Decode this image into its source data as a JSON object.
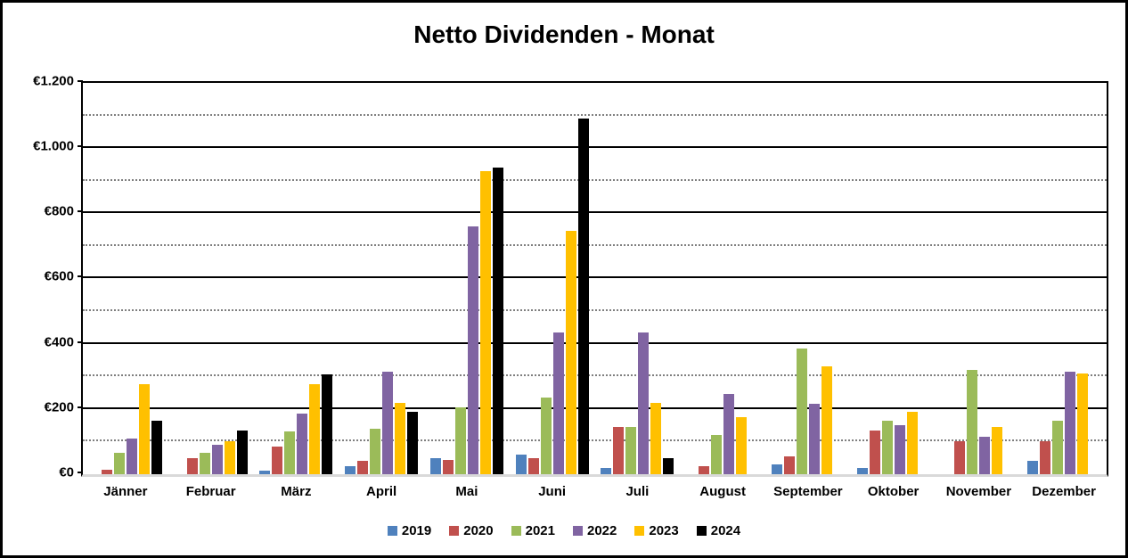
{
  "chart_data": {
    "type": "bar",
    "title": "Netto Dividenden - Monat",
    "categories": [
      "Jänner",
      "Februar",
      "März",
      "April",
      "Mai",
      "Juni",
      "Juli",
      "August",
      "September",
      "Oktober",
      "November",
      "Dezember"
    ],
    "series": [
      {
        "name": "2019",
        "color": "#4F81BD",
        "values": [
          0,
          0,
          10,
          25,
          50,
          60,
          20,
          0,
          30,
          20,
          0,
          40
        ]
      },
      {
        "name": "2020",
        "color": "#C0504D",
        "values": [
          15,
          50,
          85,
          40,
          45,
          50,
          145,
          25,
          55,
          135,
          100,
          100
        ]
      },
      {
        "name": "2021",
        "color": "#9BBB59",
        "values": [
          65,
          65,
          130,
          140,
          205,
          235,
          145,
          120,
          385,
          165,
          320,
          165
        ]
      },
      {
        "name": "2022",
        "color": "#8064A2",
        "values": [
          110,
          90,
          185,
          315,
          760,
          435,
          435,
          245,
          215,
          150,
          115,
          315
        ]
      },
      {
        "name": "2023",
        "color": "#FFC000",
        "values": [
          275,
          100,
          275,
          220,
          930,
          745,
          220,
          175,
          330,
          190,
          145,
          310
        ]
      },
      {
        "name": "2024",
        "color": "#000000",
        "values": [
          165,
          135,
          305,
          190,
          940,
          1090,
          50,
          0,
          0,
          0,
          0,
          0
        ]
      }
    ],
    "ylabel": "",
    "xlabel": "",
    "ylim": [
      0,
      1200
    ],
    "y_major_step": 200,
    "y_minor_step": 100,
    "y_tick_labels_top_to_bottom": [
      "€1.200",
      "€1.000",
      "€800",
      "€600",
      "€400",
      "€200",
      "€0"
    ],
    "grid": {
      "major_color": "#000000",
      "minor_color": "#7F7F7F",
      "minor_style": "dotted",
      "baseline_color": "#D9D9D9"
    },
    "legend_position": "bottom-center",
    "legend_entries": [
      "2019",
      "2020",
      "2021",
      "2022",
      "2023",
      "2024"
    ]
  }
}
